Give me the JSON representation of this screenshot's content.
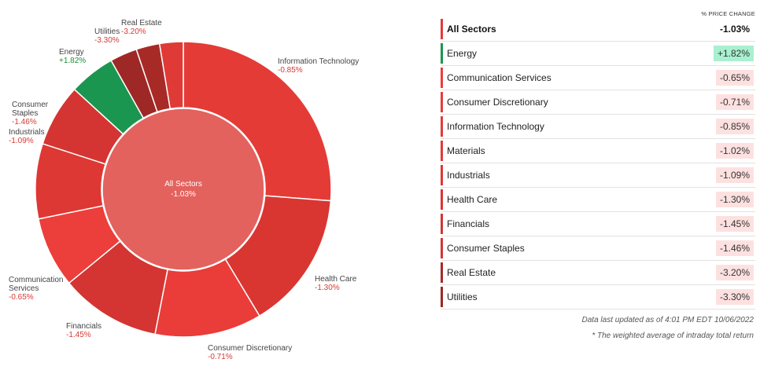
{
  "chart_data": {
    "type": "pie",
    "center_label": "All Sectors",
    "center_value": "-1.03%",
    "unit": "% price change",
    "slices": [
      {
        "name": "Information Technology",
        "label_lines": [
          "Information Technology"
        ],
        "change": "-0.85%",
        "weight_pct": 26.5,
        "color": "#e43b37"
      },
      {
        "name": "Health Care",
        "label_lines": [
          "Health Care"
        ],
        "change": "-1.30%",
        "weight_pct": 15.3,
        "color": "#d93632"
      },
      {
        "name": "Consumer Discretionary",
        "label_lines": [
          "Consumer Discretionary"
        ],
        "change": "-0.71%",
        "weight_pct": 11.8,
        "color": "#ea3c39"
      },
      {
        "name": "Financials",
        "label_lines": [
          "Financials"
        ],
        "change": "-1.45%",
        "weight_pct": 11.1,
        "color": "#d43532"
      },
      {
        "name": "Communication Services",
        "label_lines": [
          "Communication",
          "Services"
        ],
        "change": "-0.65%",
        "weight_pct": 7.8,
        "color": "#ec3e3a"
      },
      {
        "name": "Industrials",
        "label_lines": [
          "Industrials"
        ],
        "change": "-1.09%",
        "weight_pct": 8.3,
        "color": "#de3834"
      },
      {
        "name": "Consumer Staples",
        "label_lines": [
          "Consumer",
          "Staples"
        ],
        "change": "-1.46%",
        "weight_pct": 6.9,
        "color": "#d43532"
      },
      {
        "name": "Energy",
        "label_lines": [
          "Energy"
        ],
        "change": "+1.82%",
        "weight_pct": 5.1,
        "color": "#1a9650"
      },
      {
        "name": "Utilities",
        "label_lines": [
          "Utilities"
        ],
        "change": "-3.30%",
        "weight_pct": 3.0,
        "color": "#9e2826"
      },
      {
        "name": "Real Estate",
        "label_lines": [
          "Real Estate"
        ],
        "change": "-3.20%",
        "weight_pct": 2.6,
        "color": "#a82a27"
      },
      {
        "name": "Materials",
        "label_lines": [],
        "change": "-1.02%",
        "weight_pct": 2.6,
        "color": "#e03a37"
      }
    ]
  },
  "table": {
    "header": "% PRICE CHANGE",
    "rows": [
      {
        "name": "All Sectors",
        "change": "-1.03%",
        "total": true,
        "bar": "#e43b37",
        "bg": "transparent"
      },
      {
        "name": "Energy",
        "change": "+1.82%",
        "bar": "#1a9650",
        "bg": "#a8f0d0"
      },
      {
        "name": "Communication Services",
        "change": "-0.65%",
        "bar": "#ec3e3a",
        "bg": "#fde1e0"
      },
      {
        "name": "Consumer Discretionary",
        "change": "-0.71%",
        "bar": "#ea3c39",
        "bg": "#fde1e0"
      },
      {
        "name": "Information Technology",
        "change": "-0.85%",
        "bar": "#e43b37",
        "bg": "#fde1e0"
      },
      {
        "name": "Materials",
        "change": "-1.02%",
        "bar": "#e03a37",
        "bg": "#fde1e0"
      },
      {
        "name": "Industrials",
        "change": "-1.09%",
        "bar": "#de3834",
        "bg": "#fde1e0"
      },
      {
        "name": "Health Care",
        "change": "-1.30%",
        "bar": "#d93632",
        "bg": "#fde1e0"
      },
      {
        "name": "Financials",
        "change": "-1.45%",
        "bar": "#d43532",
        "bg": "#fde1e0"
      },
      {
        "name": "Consumer Staples",
        "change": "-1.46%",
        "bar": "#d43532",
        "bg": "#fde1e0"
      },
      {
        "name": "Real Estate",
        "change": "-3.20%",
        "bar": "#a82a27",
        "bg": "#fde1e0"
      },
      {
        "name": "Utilities",
        "change": "-3.30%",
        "bar": "#9e2826",
        "bg": "#fde1e0"
      }
    ]
  },
  "footer": {
    "updated": "Data last updated as of 4:01 PM EDT 10/06/2022",
    "note": "* The weighted average of intraday total return"
  }
}
